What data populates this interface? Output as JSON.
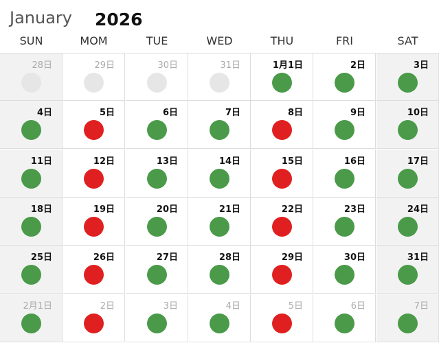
{
  "header": {
    "month": "January",
    "year": "2026"
  },
  "weekdays": [
    "SUN",
    "MOM",
    "TUE",
    "WED",
    "THU",
    "FRI",
    "SAT"
  ],
  "weekend_columns": [
    0,
    6
  ],
  "weeks": [
    [
      {
        "label": "28日",
        "muted": true,
        "dot": "#e6e6e6"
      },
      {
        "label": "29日",
        "muted": true,
        "dot": "#e6e6e6"
      },
      {
        "label": "30日",
        "muted": true,
        "dot": "#e6e6e6"
      },
      {
        "label": "31日",
        "muted": true,
        "dot": "#e6e6e6"
      },
      {
        "label": "1月1日",
        "muted": false,
        "dot": "#4a9a4a"
      },
      {
        "label": "2日",
        "muted": false,
        "dot": "#4a9a4a"
      },
      {
        "label": "3日",
        "muted": false,
        "dot": "#4a9a4a"
      }
    ],
    [
      {
        "label": "4日",
        "muted": false,
        "dot": "#4a9a4a"
      },
      {
        "label": "5日",
        "muted": false,
        "dot": "#e02020"
      },
      {
        "label": "6日",
        "muted": false,
        "dot": "#4a9a4a"
      },
      {
        "label": "7日",
        "muted": false,
        "dot": "#4a9a4a"
      },
      {
        "label": "8日",
        "muted": false,
        "dot": "#e02020"
      },
      {
        "label": "9日",
        "muted": false,
        "dot": "#4a9a4a"
      },
      {
        "label": "10日",
        "muted": false,
        "dot": "#4a9a4a"
      }
    ],
    [
      {
        "label": "11日",
        "muted": false,
        "dot": "#4a9a4a"
      },
      {
        "label": "12日",
        "muted": false,
        "dot": "#e02020"
      },
      {
        "label": "13日",
        "muted": false,
        "dot": "#4a9a4a"
      },
      {
        "label": "14日",
        "muted": false,
        "dot": "#4a9a4a"
      },
      {
        "label": "15日",
        "muted": false,
        "dot": "#e02020"
      },
      {
        "label": "16日",
        "muted": false,
        "dot": "#4a9a4a"
      },
      {
        "label": "17日",
        "muted": false,
        "dot": "#4a9a4a"
      }
    ],
    [
      {
        "label": "18日",
        "muted": false,
        "dot": "#4a9a4a"
      },
      {
        "label": "19日",
        "muted": false,
        "dot": "#e02020"
      },
      {
        "label": "20日",
        "muted": false,
        "dot": "#4a9a4a"
      },
      {
        "label": "21日",
        "muted": false,
        "dot": "#4a9a4a"
      },
      {
        "label": "22日",
        "muted": false,
        "dot": "#e02020"
      },
      {
        "label": "23日",
        "muted": false,
        "dot": "#4a9a4a"
      },
      {
        "label": "24日",
        "muted": false,
        "dot": "#4a9a4a"
      }
    ],
    [
      {
        "label": "25日",
        "muted": false,
        "dot": "#4a9a4a"
      },
      {
        "label": "26日",
        "muted": false,
        "dot": "#e02020"
      },
      {
        "label": "27日",
        "muted": false,
        "dot": "#4a9a4a"
      },
      {
        "label": "28日",
        "muted": false,
        "dot": "#4a9a4a"
      },
      {
        "label": "29日",
        "muted": false,
        "dot": "#e02020"
      },
      {
        "label": "30日",
        "muted": false,
        "dot": "#4a9a4a"
      },
      {
        "label": "31日",
        "muted": false,
        "dot": "#4a9a4a"
      }
    ],
    [
      {
        "label": "2月1日",
        "muted": true,
        "dot": "#4a9a4a"
      },
      {
        "label": "2日",
        "muted": true,
        "dot": "#e02020"
      },
      {
        "label": "3日",
        "muted": true,
        "dot": "#4a9a4a"
      },
      {
        "label": "4日",
        "muted": true,
        "dot": "#4a9a4a"
      },
      {
        "label": "5日",
        "muted": true,
        "dot": "#e02020"
      },
      {
        "label": "6日",
        "muted": true,
        "dot": "#4a9a4a"
      },
      {
        "label": "7日",
        "muted": true,
        "dot": "#4a9a4a"
      }
    ]
  ]
}
